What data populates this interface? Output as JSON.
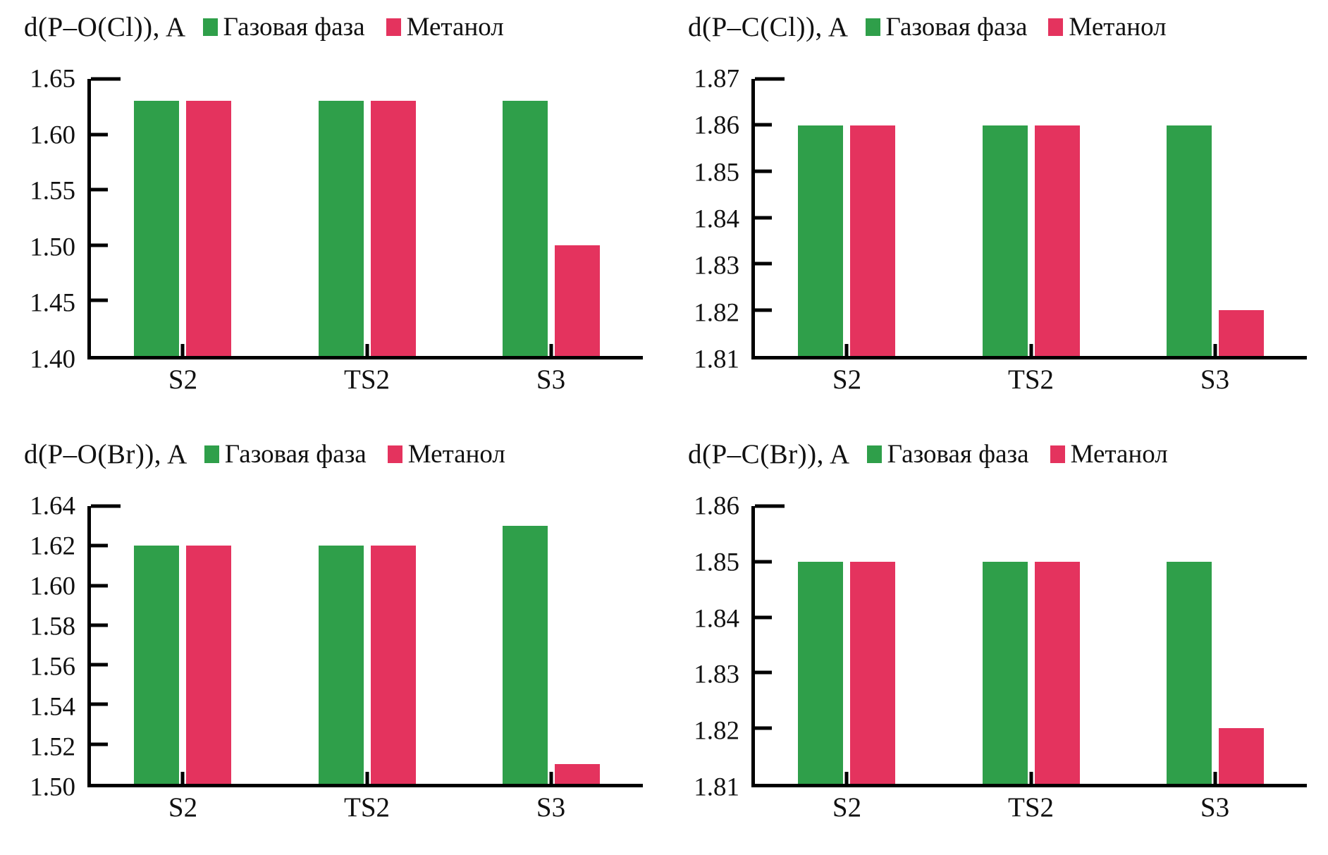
{
  "figure": {
    "background": "#ffffff",
    "axis_color": "#000000",
    "series_colors": {
      "gas_phase": "#2f9f4a",
      "methanol": "#e4335e"
    }
  },
  "chart_data": [
    {
      "type": "bar",
      "title": "d(P–O(Cl)), A",
      "categories": [
        "S2",
        "TS2",
        "S3"
      ],
      "series": [
        {
          "name": "Газовая фаза",
          "color": "#2f9f4a",
          "values": [
            1.63,
            1.63,
            1.63
          ]
        },
        {
          "name": "Метанол",
          "color": "#e4335e",
          "values": [
            1.63,
            1.63,
            1.5
          ]
        }
      ],
      "ylim": [
        1.4,
        1.65
      ],
      "ytick_step": 0.05,
      "ytick_decimals": 2,
      "grid": false,
      "legend_position": "top"
    },
    {
      "type": "bar",
      "title": "d(P–C(Cl)), A",
      "categories": [
        "S2",
        "TS2",
        "S3"
      ],
      "series": [
        {
          "name": "Газовая фаза",
          "color": "#2f9f4a",
          "values": [
            1.86,
            1.86,
            1.86
          ]
        },
        {
          "name": "Метанол",
          "color": "#e4335e",
          "values": [
            1.86,
            1.86,
            1.82
          ]
        }
      ],
      "ylim": [
        1.81,
        1.87
      ],
      "ytick_step": 0.01,
      "ytick_decimals": 2,
      "grid": false,
      "legend_position": "top"
    },
    {
      "type": "bar",
      "title": "d(P–O(Br)), A",
      "categories": [
        "S2",
        "TS2",
        "S3"
      ],
      "series": [
        {
          "name": "Газовая фаза",
          "color": "#2f9f4a",
          "values": [
            1.62,
            1.62,
            1.63
          ]
        },
        {
          "name": "Метанол",
          "color": "#e4335e",
          "values": [
            1.62,
            1.62,
            1.51
          ]
        }
      ],
      "ylim": [
        1.5,
        1.64
      ],
      "ytick_step": 0.02,
      "ytick_decimals": 2,
      "grid": false,
      "legend_position": "top"
    },
    {
      "type": "bar",
      "title": "d(P–C(Br)), A",
      "categories": [
        "S2",
        "TS2",
        "S3"
      ],
      "series": [
        {
          "name": "Газовая фаза",
          "color": "#2f9f4a",
          "values": [
            1.85,
            1.85,
            1.85
          ]
        },
        {
          "name": "Метанол",
          "color": "#e4335e",
          "values": [
            1.85,
            1.85,
            1.82
          ]
        }
      ],
      "ylim": [
        1.81,
        1.86
      ],
      "ytick_step": 0.01,
      "ytick_decimals": 2,
      "grid": false,
      "legend_position": "top"
    }
  ]
}
